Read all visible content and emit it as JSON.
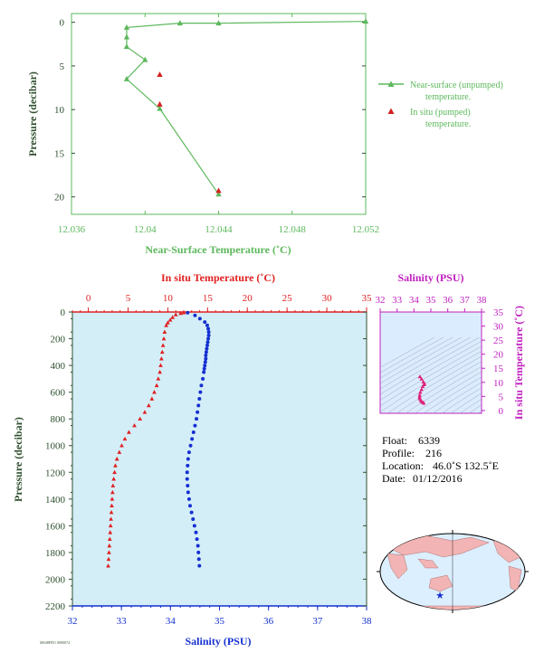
{
  "colors": {
    "near_surface": "#5cb85c",
    "in_situ_top": "#d42020",
    "temperature": "#e02020",
    "salinity": "#1530d0",
    "ts_axis": "#c020c0",
    "ts_points": "#e0207a",
    "axis_dark": "#2f4f2f",
    "panel_bg": "#d4eef8",
    "ts_bg": "#dcecff",
    "map_ocean": "#dcefff",
    "map_land": "#f2b4b4"
  },
  "chart_data": [
    {
      "type": "line",
      "xlabel": "Near-Surface Temperature (˚C)",
      "ylabel": "Pressure (decibar)",
      "xlim": [
        12.036,
        12.052
      ],
      "ylim": [
        22,
        -1
      ],
      "xticks": [
        "12.036",
        "12.04",
        "12.044",
        "12.048",
        "12.052"
      ],
      "yticks": [
        "0",
        "5",
        "10",
        "15",
        "20"
      ],
      "series": [
        {
          "name": "Near-surface (unpumped) temperature.",
          "marker": "triangle",
          "x": [
            12.052,
            12.044,
            12.0419,
            12.039,
            12.039,
            12.039,
            12.04,
            12.039,
            12.0408,
            12.044
          ],
          "y": [
            -0.1,
            0.1,
            0.1,
            0.6,
            1.7,
            2.8,
            4.3,
            6.5,
            9.9,
            19.7
          ]
        },
        {
          "name": "In situ (pumped) temperature.",
          "marker": "triangle",
          "x": [
            12.0408,
            12.0408,
            12.044
          ],
          "y": [
            6.0,
            9.4,
            19.3
          ]
        }
      ]
    },
    {
      "type": "scatter",
      "xlabel": "Salinity (PSU)",
      "ylabel": "Pressure (decibar)",
      "x2label": "In situ Temperature (˚C)",
      "xlim": [
        32,
        38
      ],
      "x2lim": [
        -2,
        35
      ],
      "ylim": [
        2200,
        0
      ],
      "xticks": [
        "32",
        "33",
        "34",
        "35",
        "36",
        "37",
        "38"
      ],
      "x2ticks": [
        "0",
        "5",
        "10",
        "15",
        "20",
        "25",
        "30",
        "35"
      ],
      "yticks": [
        "0",
        "200",
        "400",
        "600",
        "800",
        "1000",
        "1200",
        "1400",
        "1600",
        "1800",
        "2000",
        "2200"
      ],
      "temperature": {
        "p": [
          5,
          10,
          20,
          40,
          60,
          80,
          100,
          150,
          200,
          250,
          300,
          350,
          400,
          450,
          500,
          550,
          600,
          650,
          700,
          750,
          800,
          850,
          900,
          950,
          1000,
          1050,
          1100,
          1150,
          1200,
          1250,
          1300,
          1350,
          1400,
          1450,
          1500,
          1550,
          1600,
          1650,
          1700,
          1750,
          1800,
          1850,
          1900
        ],
        "values": [
          12.0,
          11.6,
          11.0,
          10.6,
          10.3,
          10.0,
          9.8,
          9.6,
          9.5,
          9.4,
          9.3,
          9.2,
          9.1,
          9.0,
          8.8,
          8.6,
          8.3,
          8.0,
          7.6,
          7.1,
          6.5,
          5.8,
          5.1,
          4.6,
          4.2,
          3.9,
          3.6,
          3.4,
          3.3,
          3.2,
          3.1,
          3.05,
          3.0,
          2.95,
          2.9,
          2.85,
          2.8,
          2.75,
          2.7,
          2.65,
          2.6,
          2.55,
          2.5
        ]
      },
      "salinity": {
        "p": [
          5,
          25,
          50,
          75,
          100,
          125,
          150,
          175,
          200,
          225,
          250,
          275,
          300,
          325,
          350,
          375,
          400,
          425,
          450,
          500,
          550,
          600,
          650,
          700,
          750,
          800,
          850,
          900,
          950,
          1000,
          1050,
          1100,
          1150,
          1200,
          1250,
          1300,
          1350,
          1400,
          1450,
          1500,
          1550,
          1600,
          1650,
          1700,
          1750,
          1800,
          1850,
          1900
        ],
        "values": [
          34.35,
          34.5,
          34.6,
          34.7,
          34.75,
          34.77,
          34.78,
          34.78,
          34.77,
          34.76,
          34.75,
          34.74,
          34.73,
          34.72,
          34.72,
          34.71,
          34.7,
          34.69,
          34.68,
          34.66,
          34.63,
          34.61,
          34.59,
          34.57,
          34.55,
          34.53,
          34.5,
          34.47,
          34.44,
          34.41,
          34.38,
          34.36,
          34.35,
          34.34,
          34.34,
          34.35,
          34.36,
          34.38,
          34.4,
          34.43,
          34.46,
          34.49,
          34.52,
          34.54,
          34.56,
          34.57,
          34.58,
          34.59
        ]
      }
    },
    {
      "type": "scatter",
      "xlabel": "Salinity (PSU)",
      "ylabel": "In situ Temperature (˚C)",
      "xlim": [
        32,
        38
      ],
      "ylim": [
        -1,
        35
      ],
      "xticks": [
        "32",
        "33",
        "34",
        "35",
        "36",
        "37",
        "38"
      ],
      "yticks": [
        "0",
        "5",
        "10",
        "15",
        "20",
        "25",
        "30",
        "35"
      ],
      "x": [
        34.35,
        34.45,
        34.55,
        34.62,
        34.6,
        34.52,
        34.45,
        34.38,
        34.34,
        34.33,
        34.35,
        34.4,
        34.45,
        34.52,
        34.58
      ],
      "y": [
        12.0,
        11.2,
        10.2,
        9.6,
        9.2,
        8.5,
        7.5,
        6.5,
        5.5,
        4.8,
        4.2,
        3.6,
        3.2,
        2.9,
        2.6
      ]
    }
  ],
  "meta": {
    "float_label": "Float:",
    "float_value": "6339",
    "profile_label": "Profile:",
    "profile_value": "216",
    "location_label": "Location:",
    "location_value": "46.0˚S  132.5˚E",
    "date_label": "Date:",
    "date_value": "01/12/2016"
  },
  "footer_code": "MS48F851 0000074",
  "map": {
    "location_marker": "location-star-icon"
  }
}
